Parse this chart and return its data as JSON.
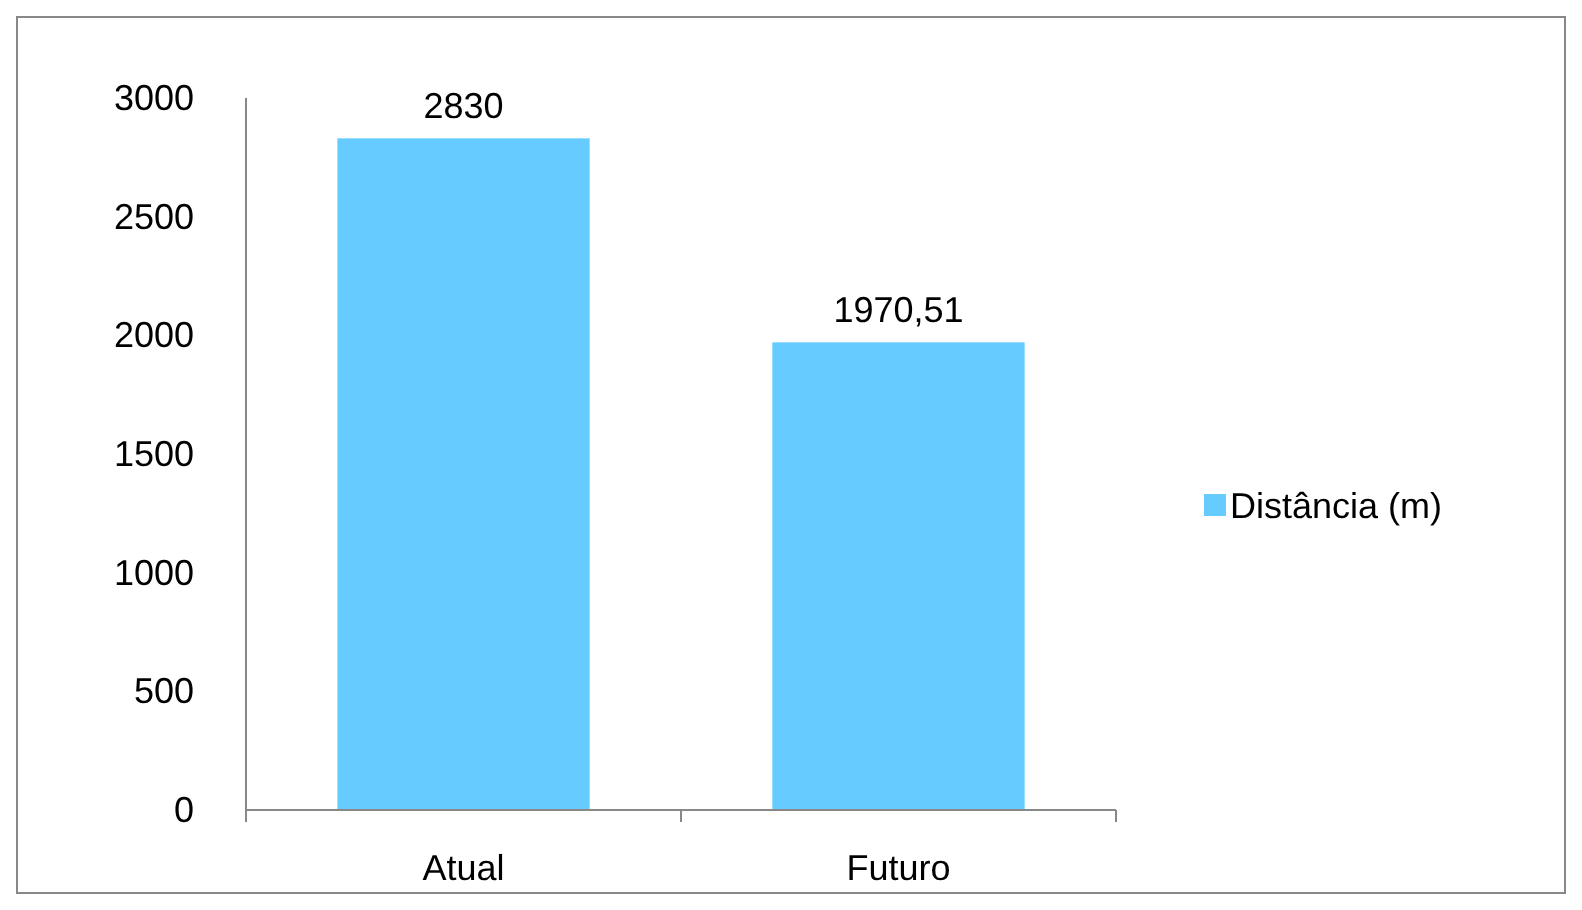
{
  "chart_data": {
    "type": "bar",
    "categories": [
      "Atual",
      "Futuro"
    ],
    "series": [
      {
        "name": "Distância (m)",
        "color": "#66ccff",
        "values": [
          2830,
          1970.51
        ],
        "value_labels": [
          "2830",
          "1970,51"
        ]
      }
    ],
    "ylim": [
      0,
      3000
    ],
    "yticks": [
      0,
      500,
      1000,
      1500,
      2000,
      2500,
      3000
    ],
    "grid": false,
    "legend": "right"
  }
}
